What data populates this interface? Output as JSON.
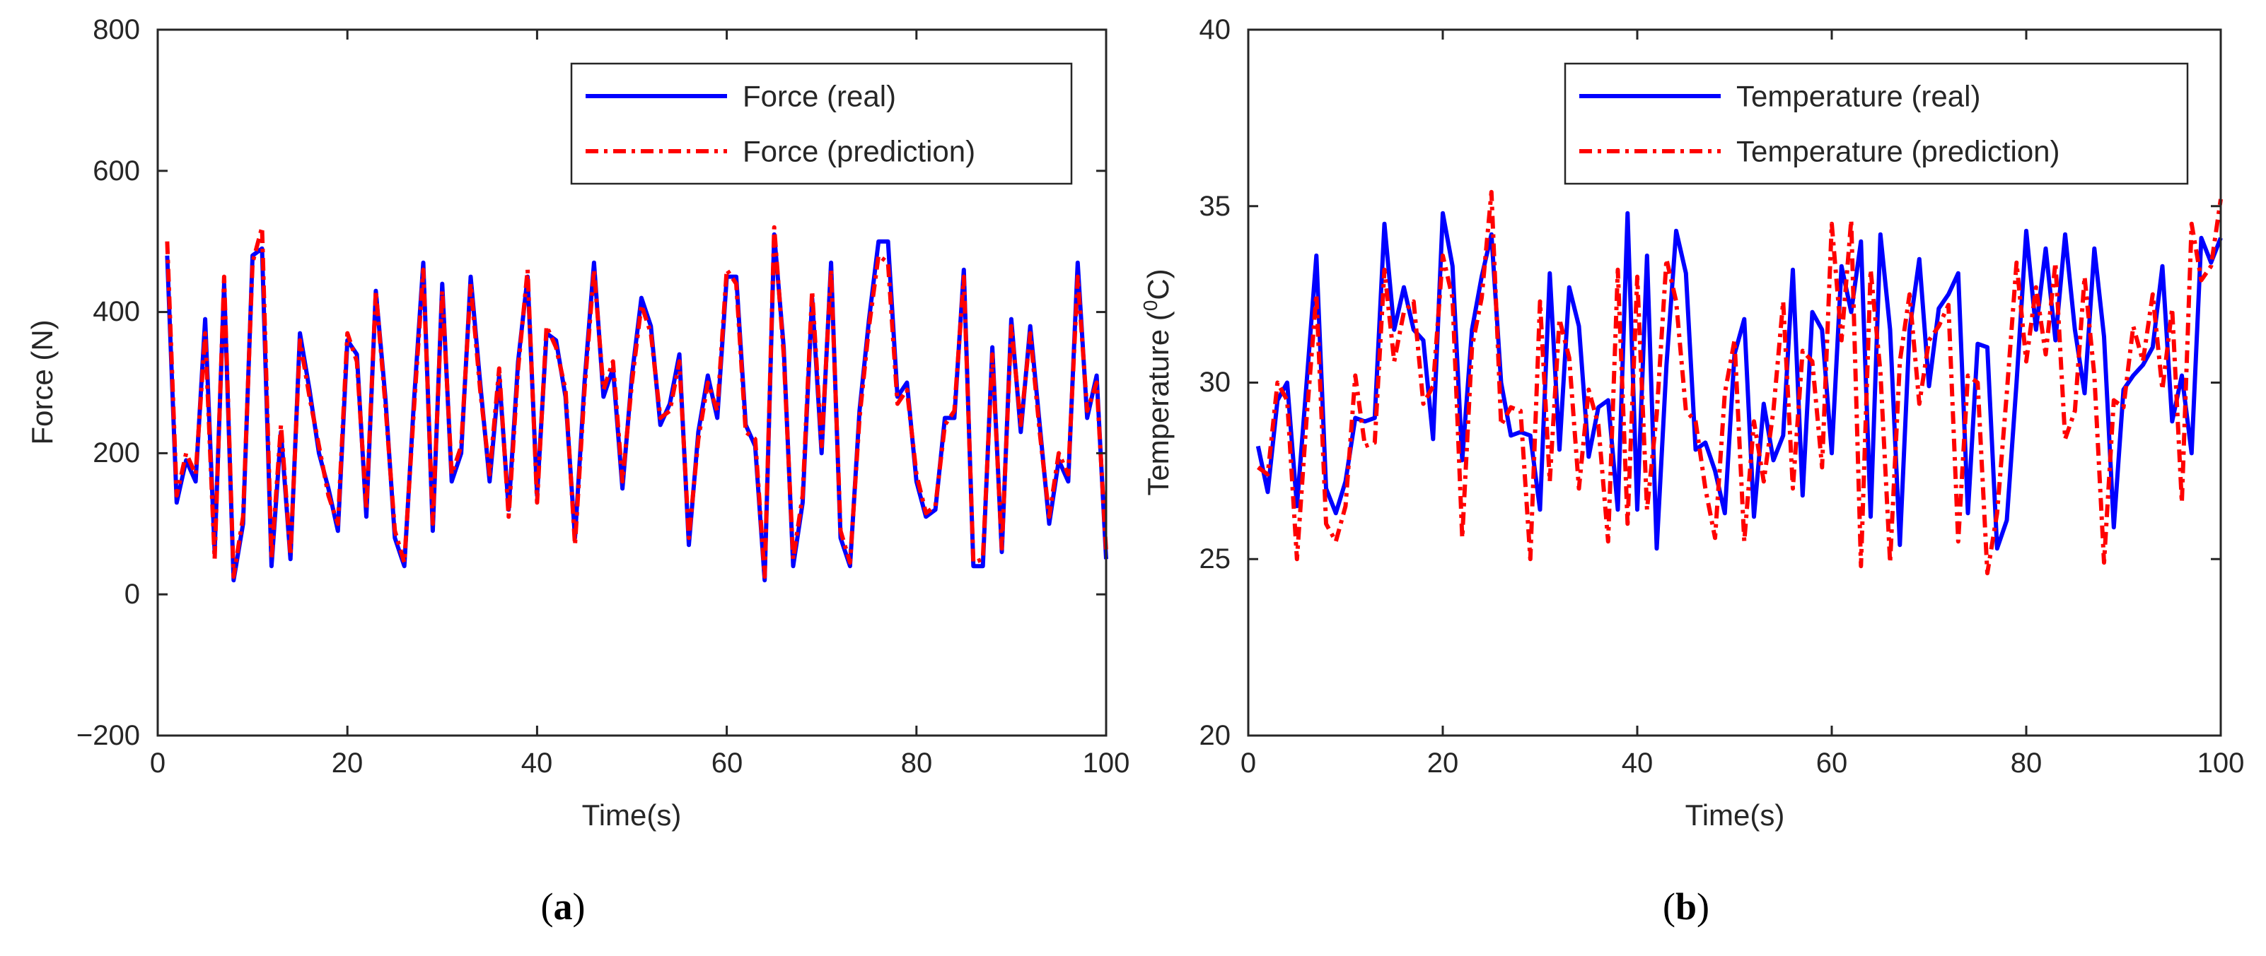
{
  "chart_data": [
    {
      "type": "line",
      "panel_label": "a",
      "title": "",
      "xlabel": "Time(s)",
      "ylabel": "Force (N)",
      "xlim": [
        0,
        100
      ],
      "ylim": [
        -200,
        800
      ],
      "xticks": [
        0,
        20,
        40,
        60,
        80,
        100
      ],
      "yticks": [
        -200,
        0,
        200,
        400,
        600,
        800
      ],
      "xtick_labels": [
        "0",
        "20",
        "40",
        "60",
        "80",
        "100"
      ],
      "ytick_labels": [
        "−200",
        "0",
        "200",
        "400",
        "600",
        "800"
      ],
      "grid": false,
      "legend_position": "top-right",
      "x": [
        1,
        2,
        3,
        4,
        5,
        6,
        7,
        8,
        9,
        10,
        11,
        12,
        13,
        14,
        15,
        16,
        17,
        18,
        19,
        20,
        21,
        22,
        23,
        24,
        25,
        26,
        27,
        28,
        29,
        30,
        31,
        32,
        33,
        34,
        35,
        36,
        37,
        38,
        39,
        40,
        41,
        42,
        43,
        44,
        45,
        46,
        47,
        48,
        49,
        50,
        51,
        52,
        53,
        54,
        55,
        56,
        57,
        58,
        59,
        60,
        61,
        62,
        63,
        64,
        65,
        66,
        67,
        68,
        69,
        70,
        71,
        72,
        73,
        74,
        75,
        76,
        77,
        78,
        79,
        80,
        81,
        82,
        83,
        84,
        85,
        86,
        87,
        88,
        89,
        90,
        91,
        92,
        93,
        94,
        95,
        96,
        97,
        98,
        99,
        100
      ],
      "series": [
        {
          "name": "Force (real)",
          "color": "#0000ff",
          "style": "solid",
          "values": [
            480,
            130,
            190,
            160,
            390,
            60,
            440,
            20,
            100,
            480,
            490,
            40,
            230,
            50,
            370,
            290,
            200,
            150,
            90,
            360,
            340,
            110,
            430,
            280,
            80,
            40,
            270,
            470,
            90,
            440,
            160,
            200,
            450,
            300,
            160,
            310,
            120,
            330,
            450,
            140,
            370,
            360,
            280,
            80,
            300,
            470,
            280,
            320,
            150,
            310,
            420,
            380,
            240,
            270,
            340,
            70,
            230,
            310,
            250,
            450,
            450,
            240,
            210,
            20,
            510,
            350,
            40,
            130,
            420,
            200,
            470,
            80,
            40,
            260,
            390,
            500,
            500,
            280,
            300,
            160,
            110,
            120,
            250,
            250,
            460,
            40,
            40,
            350,
            60,
            390,
            230,
            380,
            240,
            100,
            190,
            160,
            470,
            250,
            310,
            50
          ]
        },
        {
          "name": "Force (prediction)",
          "color": "#ff0000",
          "style": "dashdot",
          "values": [
            500,
            140,
            200,
            170,
            370,
            50,
            450,
            25,
            110,
            470,
            520,
            50,
            240,
            55,
            360,
            280,
            210,
            140,
            100,
            370,
            330,
            120,
            430,
            270,
            90,
            45,
            260,
            460,
            100,
            430,
            170,
            210,
            440,
            290,
            170,
            320,
            110,
            320,
            460,
            130,
            380,
            350,
            290,
            70,
            290,
            460,
            290,
            330,
            160,
            300,
            410,
            370,
            250,
            260,
            330,
            80,
            220,
            300,
            260,
            460,
            440,
            230,
            220,
            25,
            520,
            340,
            50,
            140,
            430,
            210,
            460,
            90,
            45,
            250,
            380,
            480,
            470,
            270,
            290,
            170,
            115,
            125,
            240,
            260,
            450,
            45,
            50,
            340,
            65,
            380,
            240,
            370,
            230,
            110,
            200,
            170,
            450,
            260,
            300,
            60
          ]
        }
      ]
    },
    {
      "type": "line",
      "panel_label": "b",
      "title": "",
      "xlabel": "Time(s)",
      "ylabel": "Temperature (⁰C)",
      "ylabel_main": "Temperature (",
      "ylabel_sup": "0",
      "ylabel_end": "C)",
      "xlim": [
        0,
        100
      ],
      "ylim": [
        20,
        40
      ],
      "xticks": [
        0,
        20,
        40,
        60,
        80,
        100
      ],
      "yticks": [
        20,
        25,
        30,
        35,
        40
      ],
      "xtick_labels": [
        "0",
        "20",
        "40",
        "60",
        "80",
        "100"
      ],
      "ytick_labels": [
        "20",
        "25",
        "30",
        "35",
        "40"
      ],
      "grid": false,
      "legend_position": "top-right",
      "x": [
        1,
        2,
        3,
        4,
        5,
        6,
        7,
        8,
        9,
        10,
        11,
        12,
        13,
        14,
        15,
        16,
        17,
        18,
        19,
        20,
        21,
        22,
        23,
        24,
        25,
        26,
        27,
        28,
        29,
        30,
        31,
        32,
        33,
        34,
        35,
        36,
        37,
        38,
        39,
        40,
        41,
        42,
        43,
        44,
        45,
        46,
        47,
        48,
        49,
        50,
        51,
        52,
        53,
        54,
        55,
        56,
        57,
        58,
        59,
        60,
        61,
        62,
        63,
        64,
        65,
        66,
        67,
        68,
        69,
        70,
        71,
        72,
        73,
        74,
        75,
        76,
        77,
        78,
        79,
        80,
        81,
        82,
        83,
        84,
        85,
        86,
        87,
        88,
        89,
        90,
        91,
        92,
        93,
        94,
        95,
        96,
        97,
        98,
        99,
        100
      ],
      "series": [
        {
          "name": "Temperature (real)",
          "color": "#0000ff",
          "style": "solid",
          "values": [
            28.2,
            26.9,
            29.5,
            30.0,
            26.5,
            30.0,
            33.6,
            27.0,
            26.3,
            27.2,
            29.0,
            28.9,
            29.0,
            34.5,
            31.5,
            32.7,
            31.5,
            31.2,
            28.4,
            34.8,
            33.3,
            27.8,
            31.5,
            33.0,
            34.2,
            30.0,
            28.5,
            28.6,
            28.5,
            26.4,
            33.1,
            28.1,
            32.7,
            31.6,
            27.9,
            29.3,
            29.5,
            26.4,
            34.8,
            26.4,
            33.6,
            25.3,
            30.5,
            34.3,
            33.1,
            28.1,
            28.3,
            27.5,
            26.3,
            30.8,
            31.8,
            26.2,
            29.4,
            27.8,
            28.5,
            33.2,
            26.8,
            32.0,
            31.5,
            28.0,
            33.3,
            32.0,
            34.0,
            26.2,
            34.2,
            31.5,
            25.4,
            31.5,
            33.5,
            29.9,
            32.1,
            32.5,
            33.1,
            26.3,
            31.1,
            31.0,
            25.3,
            26.1,
            30.0,
            34.3,
            31.5,
            33.8,
            31.2,
            34.2,
            31.5,
            29.7,
            33.8,
            31.3,
            25.9,
            29.8,
            30.2,
            30.5,
            31.0,
            33.3,
            28.9,
            30.2,
            28.0,
            34.1,
            33.4,
            34.1
          ]
        },
        {
          "name": "Temperature (prediction)",
          "color": "#ff0000",
          "style": "dashdot",
          "values": [
            27.6,
            27.4,
            30.0,
            29.5,
            25.0,
            29.0,
            32.5,
            26.0,
            25.5,
            26.5,
            30.2,
            28.2,
            28.3,
            33.2,
            30.6,
            32.0,
            32.3,
            29.4,
            29.9,
            33.6,
            32.4,
            25.6,
            31.0,
            32.4,
            35.4,
            28.8,
            29.3,
            29.2,
            25.0,
            32.3,
            27.2,
            31.8,
            30.7,
            27.0,
            29.8,
            28.8,
            25.5,
            33.2,
            26.0,
            33.0,
            26.4,
            29.1,
            33.5,
            32.3,
            29.2,
            28.9,
            27.0,
            25.6,
            29.7,
            31.2,
            25.5,
            28.9,
            27.2,
            29.2,
            32.3,
            27.0,
            30.9,
            30.6,
            27.6,
            34.5,
            31.2,
            34.6,
            24.8,
            33.2,
            30.3,
            24.9,
            30.6,
            32.5,
            29.4,
            31.2,
            31.6,
            32.2,
            25.5,
            30.2,
            30.0,
            24.6,
            26.3,
            29.7,
            33.4,
            30.6,
            32.7,
            30.8,
            33.4,
            28.4,
            29.2,
            33.0,
            30.2,
            24.9,
            29.5,
            29.3,
            31.6,
            30.6,
            32.5,
            29.8,
            32.1,
            26.6,
            34.5,
            32.9,
            33.3,
            35.2
          ]
        }
      ]
    }
  ]
}
